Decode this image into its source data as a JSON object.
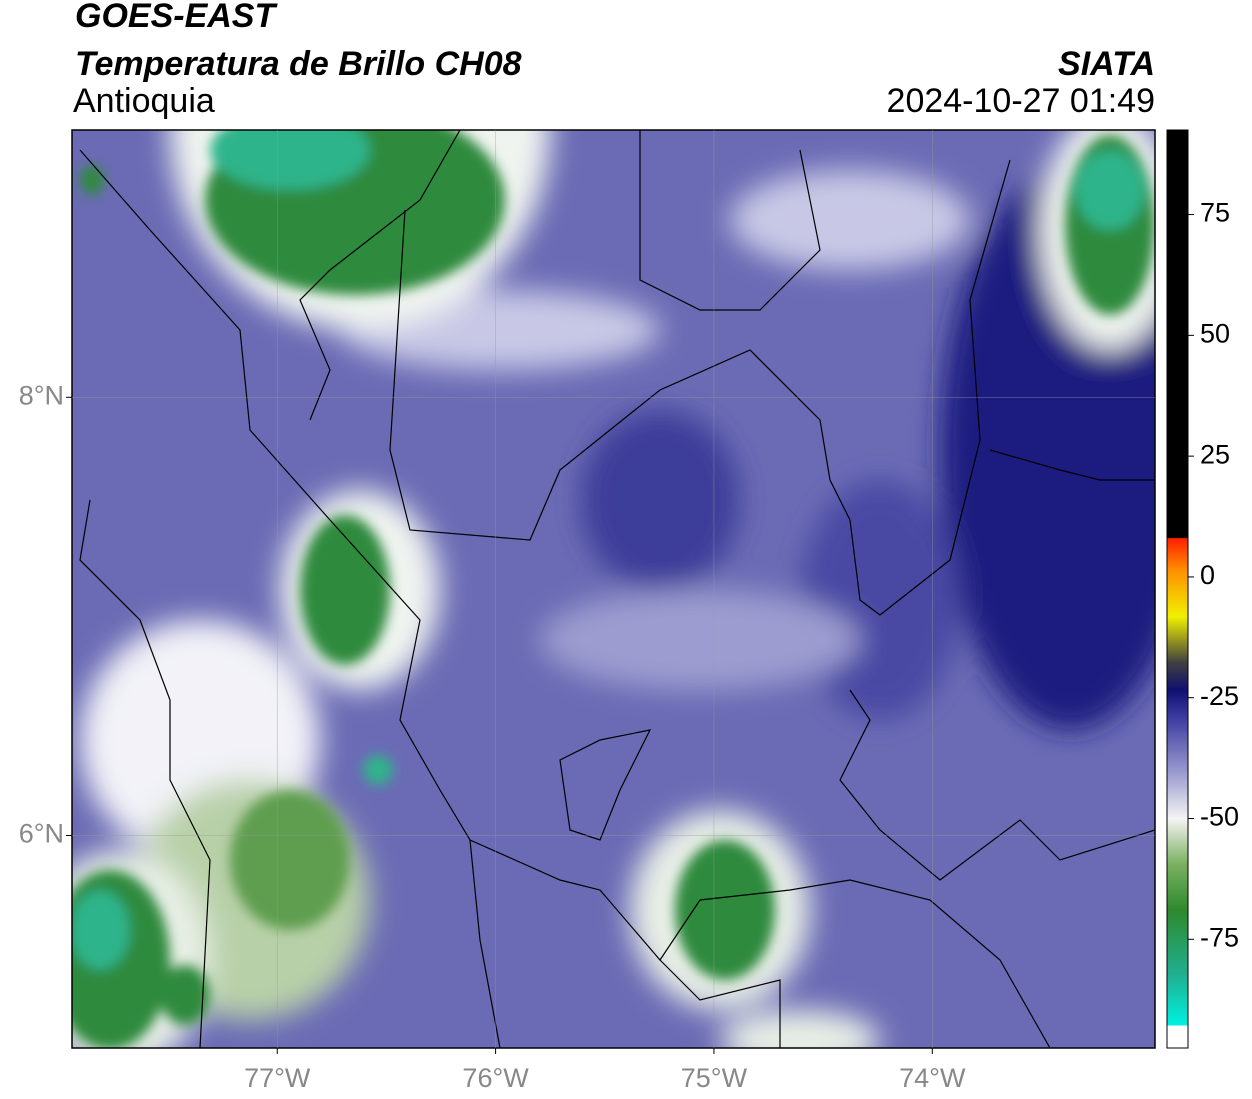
{
  "header": {
    "title": "GOES-EAST",
    "subtitle": "Temperatura de Brillo CH08",
    "region": "Antioquia",
    "source": "SIATA",
    "timestamp": "2024-10-27 01:49"
  },
  "map": {
    "lonlim": [
      -77.94,
      -72.98
    ],
    "latlim": [
      5.03,
      9.22
    ],
    "lonticks": [
      {
        "value": -77,
        "label": "77°W"
      },
      {
        "value": -76,
        "label": "76°W"
      },
      {
        "value": -75,
        "label": "75°W"
      },
      {
        "value": -74,
        "label": "74°W"
      }
    ],
    "latticks": [
      {
        "value": 8,
        "label": "8°N"
      },
      {
        "value": 6,
        "label": "6°N"
      }
    ],
    "grid": true
  },
  "colorbar": {
    "lim": [
      -97.5,
      92.5
    ],
    "ticks": [
      75,
      50,
      25,
      0,
      -25,
      -50,
      -75
    ]
  }
}
